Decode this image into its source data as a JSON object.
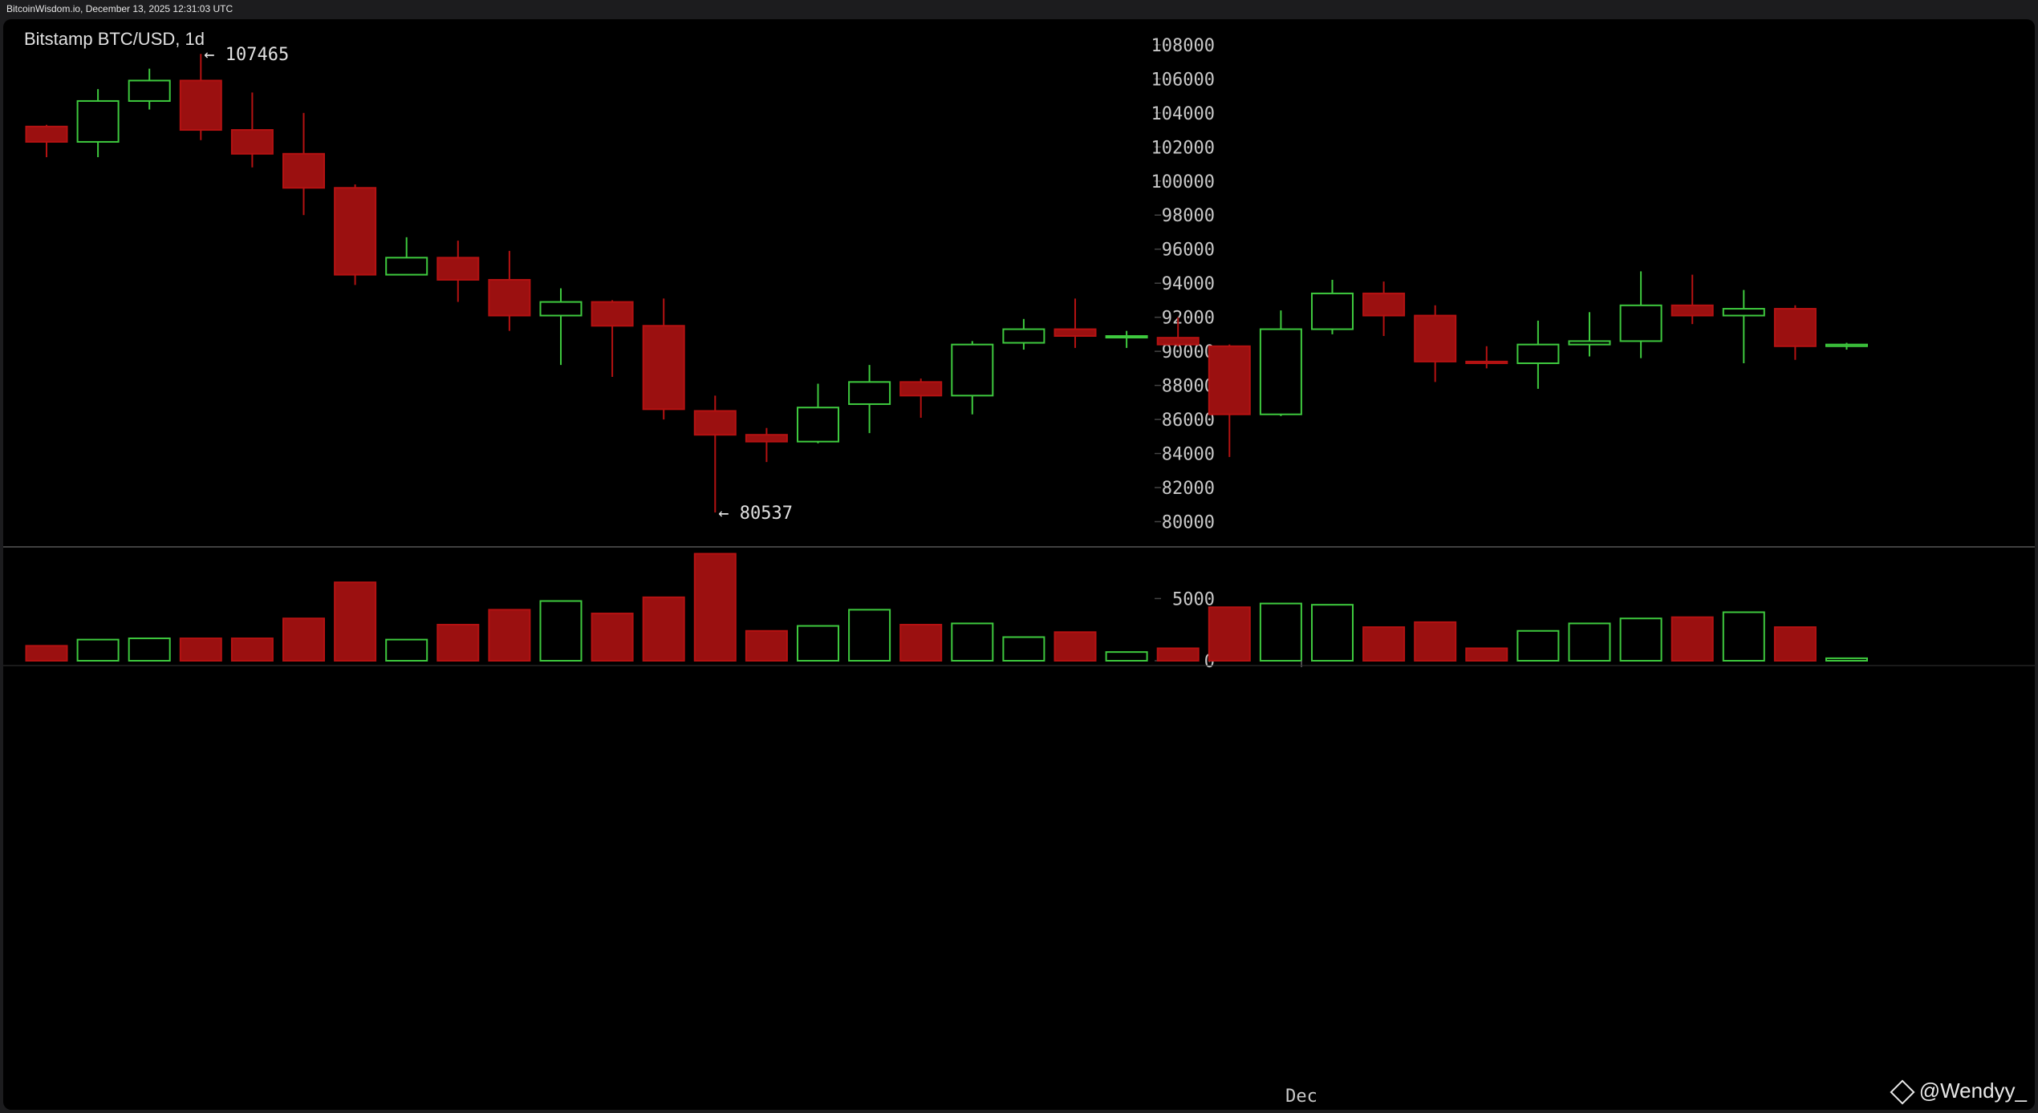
{
  "window": {
    "title": "BitcoinWisdom.io, December 13, 2025 12:31:03 UTC"
  },
  "watermark": {
    "text": "@Wendyy_",
    "icon": "binance-diamond-icon"
  },
  "colors": {
    "up": "#3ec93e",
    "down": "#b51212",
    "down_fill": "#9b1010",
    "grid": "#444444",
    "text": "#c8c8c8"
  },
  "chart_data": {
    "type": "candlestick",
    "title": "Bitstamp BTC/USD, 1d",
    "ylim": [
      78800,
      108700
    ],
    "yticks": [
      80000,
      82000,
      84000,
      86000,
      88000,
      90000,
      92000,
      94000,
      96000,
      98000,
      100000,
      102000,
      104000,
      106000,
      108000
    ],
    "volume_ylim": [
      0,
      8700
    ],
    "volume_ticks": [
      0,
      5000
    ],
    "x_labels": [
      {
        "index": 24.4,
        "label": "Dec"
      }
    ],
    "annotations": [
      {
        "label": "← 107465",
        "index": 3,
        "value": 107465,
        "anchor": "high"
      },
      {
        "label": "← 80537",
        "index": 13,
        "value": 80537,
        "anchor": "low"
      }
    ],
    "candles": [
      {
        "open": 103200,
        "high": 103300,
        "low": 101400,
        "close": 102300,
        "volume": 1200
      },
      {
        "open": 102300,
        "high": 105400,
        "low": 101400,
        "close": 104700,
        "volume": 1700
      },
      {
        "open": 104700,
        "high": 106600,
        "low": 104200,
        "close": 105900,
        "volume": 1800
      },
      {
        "open": 105900,
        "high": 107465,
        "low": 102400,
        "close": 103000,
        "volume": 1800
      },
      {
        "open": 103000,
        "high": 105200,
        "low": 100800,
        "close": 101600,
        "volume": 1800
      },
      {
        "open": 101600,
        "high": 104000,
        "low": 98000,
        "close": 99600,
        "volume": 3400
      },
      {
        "open": 99600,
        "high": 99800,
        "low": 93900,
        "close": 94500,
        "volume": 6300
      },
      {
        "open": 94500,
        "high": 96700,
        "low": 94500,
        "close": 95500,
        "volume": 1700
      },
      {
        "open": 95500,
        "high": 96500,
        "low": 92900,
        "close": 94200,
        "volume": 2900
      },
      {
        "open": 94200,
        "high": 95900,
        "low": 91200,
        "close": 92100,
        "volume": 4100
      },
      {
        "open": 92100,
        "high": 93700,
        "low": 89200,
        "close": 92900,
        "volume": 4800
      },
      {
        "open": 92900,
        "high": 93000,
        "low": 88500,
        "close": 91500,
        "volume": 3800
      },
      {
        "open": 91500,
        "high": 93100,
        "low": 86000,
        "close": 86600,
        "volume": 5100
      },
      {
        "open": 86500,
        "high": 87400,
        "low": 80537,
        "close": 85100,
        "volume": 8600
      },
      {
        "open": 85100,
        "high": 85500,
        "low": 83500,
        "close": 84700,
        "volume": 2400
      },
      {
        "open": 84700,
        "high": 88100,
        "low": 84600,
        "close": 86700,
        "volume": 2800
      },
      {
        "open": 86900,
        "high": 89200,
        "low": 85200,
        "close": 88200,
        "volume": 4100
      },
      {
        "open": 88200,
        "high": 88400,
        "low": 86100,
        "close": 87400,
        "volume": 2900
      },
      {
        "open": 87400,
        "high": 90600,
        "low": 86300,
        "close": 90400,
        "volume": 3000
      },
      {
        "open": 90500,
        "high": 91900,
        "low": 90100,
        "close": 91300,
        "volume": 1900
      },
      {
        "open": 91300,
        "high": 93100,
        "low": 90200,
        "close": 90900,
        "volume": 2300
      },
      {
        "open": 90900,
        "high": 91200,
        "low": 90200,
        "close": 90900,
        "volume": 700
      },
      {
        "open": 90800,
        "high": 92000,
        "low": 90300,
        "close": 90400,
        "volume": 1000
      },
      {
        "open": 90300,
        "high": 90400,
        "low": 83800,
        "close": 86300,
        "volume": 4300
      },
      {
        "open": 86300,
        "high": 92400,
        "low": 86200,
        "close": 91300,
        "volume": 4600
      },
      {
        "open": 91300,
        "high": 94200,
        "low": 91000,
        "close": 93400,
        "volume": 4500
      },
      {
        "open": 93400,
        "high": 94100,
        "low": 90900,
        "close": 92100,
        "volume": 2700
      },
      {
        "open": 92100,
        "high": 92700,
        "low": 88200,
        "close": 89400,
        "volume": 3100
      },
      {
        "open": 89400,
        "high": 90300,
        "low": 89000,
        "close": 89300,
        "volume": 1000
      },
      {
        "open": 89300,
        "high": 91800,
        "low": 87800,
        "close": 90400,
        "volume": 2400
      },
      {
        "open": 90400,
        "high": 92300,
        "low": 89700,
        "close": 90600,
        "volume": 3000
      },
      {
        "open": 90600,
        "high": 94700,
        "low": 89600,
        "close": 92700,
        "volume": 3400
      },
      {
        "open": 92700,
        "high": 94500,
        "low": 91600,
        "close": 92100,
        "volume": 3500
      },
      {
        "open": 92100,
        "high": 93600,
        "low": 89300,
        "close": 92500,
        "volume": 3900
      },
      {
        "open": 92500,
        "high": 92700,
        "low": 89500,
        "close": 90300,
        "volume": 2700
      },
      {
        "open": 90300,
        "high": 90500,
        "low": 90100,
        "close": 90400,
        "volume": 200
      }
    ]
  }
}
